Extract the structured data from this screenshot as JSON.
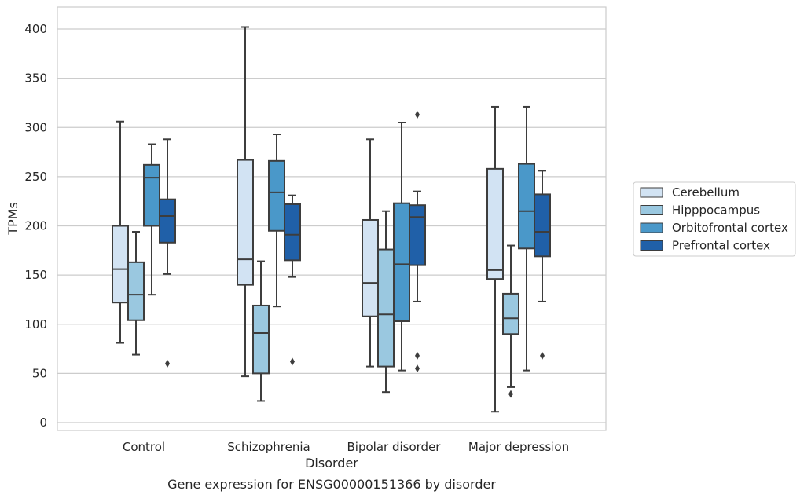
{
  "colors": {
    "Cerebellum": "#d2e3f3",
    "Hipppocampus": "#9ac8e0",
    "Orbitofrontal cortex": "#4a98c9",
    "Prefrontal cortex": "#2060a8",
    "line": "#3d3d3d",
    "grid": "#cccccc",
    "frame": "#cccccc"
  },
  "chart_data": {
    "type": "boxplot",
    "title": "",
    "caption": "Gene expression for ENSG00000151366 by disorder",
    "xlabel": "Disorder",
    "ylabel": "TPMs",
    "ylim": [
      -8,
      422
    ],
    "yticks": [
      0,
      50,
      100,
      150,
      200,
      250,
      300,
      350,
      400
    ],
    "grid": "horizontal",
    "legend_position": "right",
    "categories": [
      "Control",
      "Schizophrenia",
      "Bipolar disorder",
      "Major depression"
    ],
    "series": [
      {
        "name": "Cerebellum",
        "boxes": [
          {
            "whislo": 81,
            "q1": 122,
            "med": 156,
            "q3": 200,
            "whishi": 306,
            "fliers": []
          },
          {
            "whislo": 47,
            "q1": 140,
            "med": 166,
            "q3": 267,
            "whishi": 402,
            "fliers": []
          },
          {
            "whislo": 57,
            "q1": 108,
            "med": 142,
            "q3": 206,
            "whishi": 288,
            "fliers": []
          },
          {
            "whislo": 11,
            "q1": 146,
            "med": 155,
            "q3": 258,
            "whishi": 321,
            "fliers": []
          }
        ]
      },
      {
        "name": "Hipppocampus",
        "boxes": [
          {
            "whislo": 69,
            "q1": 104,
            "med": 130,
            "q3": 163,
            "whishi": 194,
            "fliers": []
          },
          {
            "whislo": 22,
            "q1": 50,
            "med": 91,
            "q3": 119,
            "whishi": 164,
            "fliers": []
          },
          {
            "whislo": 31,
            "q1": 57,
            "med": 110,
            "q3": 176,
            "whishi": 215,
            "fliers": []
          },
          {
            "whislo": 36,
            "q1": 90,
            "med": 106,
            "q3": 131,
            "whishi": 180,
            "fliers": [
              29
            ]
          }
        ]
      },
      {
        "name": "Orbitofrontal cortex",
        "boxes": [
          {
            "whislo": 130,
            "q1": 200,
            "med": 249,
            "q3": 262,
            "whishi": 283,
            "fliers": []
          },
          {
            "whislo": 118,
            "q1": 195,
            "med": 234,
            "q3": 266,
            "whishi": 293,
            "fliers": []
          },
          {
            "whislo": 53,
            "q1": 103,
            "med": 161,
            "q3": 223,
            "whishi": 305,
            "fliers": []
          },
          {
            "whislo": 53,
            "q1": 177,
            "med": 215,
            "q3": 263,
            "whishi": 321,
            "fliers": []
          }
        ]
      },
      {
        "name": "Prefrontal cortex",
        "boxes": [
          {
            "whislo": 151,
            "q1": 183,
            "med": 210,
            "q3": 227,
            "whishi": 288,
            "fliers": [
              60
            ]
          },
          {
            "whislo": 148,
            "q1": 165,
            "med": 191,
            "q3": 222,
            "whishi": 231,
            "fliers": [
              62
            ]
          },
          {
            "whislo": 123,
            "q1": 160,
            "med": 209,
            "q3": 221,
            "whishi": 235,
            "fliers": [
              313,
              68,
              55
            ]
          },
          {
            "whislo": 123,
            "q1": 169,
            "med": 194,
            "q3": 232,
            "whishi": 256,
            "fliers": [
              68
            ]
          }
        ]
      }
    ]
  }
}
